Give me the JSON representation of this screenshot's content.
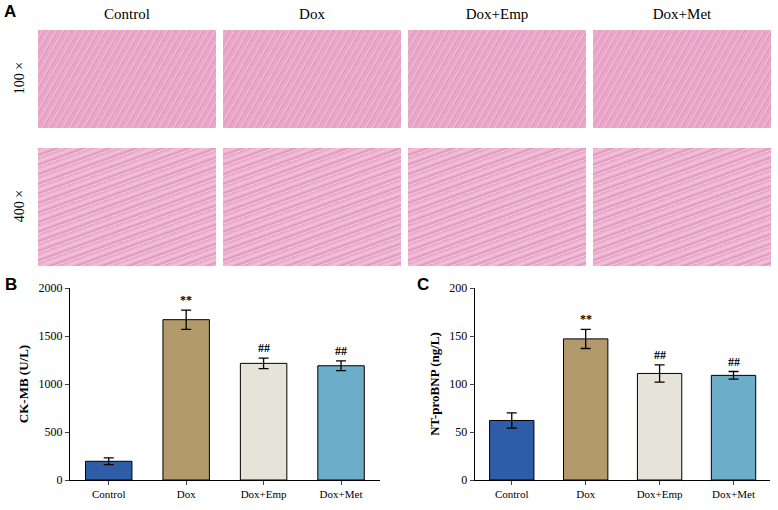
{
  "panel_a": {
    "label": "A",
    "columns": [
      "Control",
      "Dox",
      "Dox+Emp",
      "Dox+Met"
    ],
    "rows": [
      "100 ×",
      "400 ×"
    ]
  },
  "chart_data": [
    {
      "label": "B",
      "type": "bar",
      "categories": [
        "Control",
        "Dox",
        "Dox+Emp",
        "Dox+Met"
      ],
      "values": [
        195,
        1670,
        1215,
        1190
      ],
      "errors": [
        35,
        100,
        55,
        50
      ],
      "colors": [
        "#2f5ca6",
        "#b39a6a",
        "#e6e3d8",
        "#6cadc9"
      ],
      "ylabel": "CK-MB (U/L)",
      "ylim": [
        0,
        2000
      ],
      "yticks": [
        0,
        500,
        1000,
        1500,
        2000
      ],
      "grid": false,
      "annotations": [
        {
          "category": "Dox",
          "text": "**"
        },
        {
          "category": "Dox+Emp",
          "text": "##"
        },
        {
          "category": "Dox+Met",
          "text": "##"
        }
      ]
    },
    {
      "label": "C",
      "type": "bar",
      "categories": [
        "Control",
        "Dox",
        "Dox+Emp",
        "Dox+Met"
      ],
      "values": [
        62,
        147,
        111,
        109
      ],
      "errors": [
        8,
        10,
        9,
        4
      ],
      "colors": [
        "#2f5ca6",
        "#b39a6a",
        "#e6e3d8",
        "#6cadc9"
      ],
      "ylabel": "NT-proBNP (ng/L)",
      "ylim": [
        0,
        200
      ],
      "yticks": [
        0,
        50,
        100,
        150,
        200
      ],
      "grid": false,
      "annotations": [
        {
          "category": "Dox",
          "text": "**"
        },
        {
          "category": "Dox+Emp",
          "text": "##"
        },
        {
          "category": "Dox+Met",
          "text": "##"
        }
      ]
    }
  ]
}
